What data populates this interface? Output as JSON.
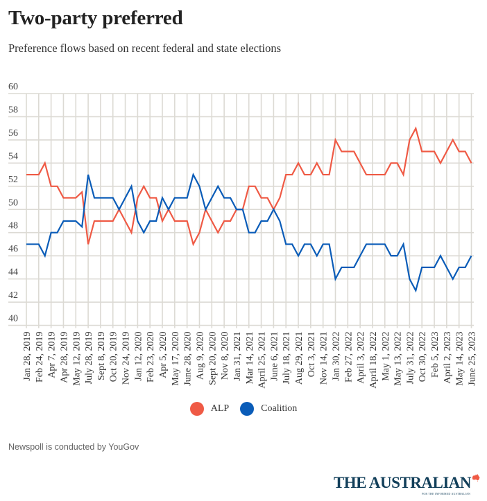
{
  "header": {
    "title": "Two-party preferred",
    "subtitle": "Preference flows based on recent federal and state elections"
  },
  "chart_data": {
    "type": "line",
    "title": "Two-party preferred",
    "subtitle": "Preference flows based on recent federal and state elections",
    "xlabel": "",
    "ylabel": "",
    "ylim": [
      40,
      60
    ],
    "yticks": [
      60,
      58,
      56,
      54,
      52,
      50,
      48,
      46,
      44,
      42,
      40
    ],
    "grid": true,
    "legend_position": "bottom-center",
    "x_tick_labels": [
      "Jan 28, 2019",
      "Feb 24, 2019",
      "Apr 7, 2019",
      "Apr 28, 2019",
      "May 12, 2019",
      "July 28, 2019",
      "Sept 8, 2019",
      "Oct 20, 2019",
      "Nov 24, 2019",
      "Jan 12, 2020",
      "Feb 23, 2020",
      "Apr 5, 2020",
      "May 17, 2020",
      "June 28, 2020",
      "Aug 9, 2020",
      "Sept 20, 2020",
      "Nov 8, 2020",
      "Jan 31, 2021",
      "Mar 14, 2021",
      "April 25, 2021",
      "June 6, 2021",
      "July 18, 2021",
      "Aug 29, 2021",
      "Oct 3, 2021",
      "Nov 14, 2021",
      "Jan 30, 2022",
      "Feb 27, 2022",
      "April 3, 2022",
      "April 18, 2022",
      "May 1, 2022",
      "May 13, 2022",
      "July 31, 2022",
      "Oct 30, 2022",
      "Feb 5, 2023",
      "April 2, 2023",
      "May 14, 2023",
      "June 25, 2023"
    ],
    "points_per_label": 2,
    "series": [
      {
        "name": "ALP",
        "color": "#ef5a45",
        "values": [
          53,
          53,
          53,
          54,
          52,
          52,
          51,
          51,
          51,
          51.5,
          47,
          49,
          49,
          49,
          49,
          50,
          49,
          48,
          51,
          52,
          51,
          51,
          49,
          50,
          49,
          49,
          49,
          47,
          48,
          50,
          49,
          48,
          49,
          49,
          50,
          50,
          52,
          52,
          51,
          51,
          50,
          51,
          53,
          53,
          54,
          53,
          53,
          54,
          53,
          53,
          56,
          55,
          55,
          55,
          54,
          53,
          53,
          53,
          53,
          54,
          54,
          53,
          56,
          57,
          55,
          55,
          55,
          54,
          55,
          56,
          55,
          55,
          54
        ]
      },
      {
        "name": "Coalition",
        "color": "#0a5cb8",
        "values": [
          47,
          47,
          47,
          46,
          48,
          48,
          49,
          49,
          49,
          48.5,
          53,
          51,
          51,
          51,
          51,
          50,
          51,
          52,
          49,
          48,
          49,
          49,
          51,
          50,
          51,
          51,
          51,
          53,
          52,
          50,
          51,
          52,
          51,
          51,
          50,
          50,
          48,
          48,
          49,
          49,
          50,
          49,
          47,
          47,
          46,
          47,
          47,
          46,
          47,
          47,
          44,
          45,
          45,
          45,
          46,
          47,
          47,
          47,
          47,
          46,
          46,
          47,
          44,
          43,
          45,
          45,
          45,
          46,
          45,
          44,
          45,
          45,
          46
        ]
      }
    ]
  },
  "legend": [
    {
      "label": "ALP",
      "color": "#ef5a45"
    },
    {
      "label": "Coalition",
      "color": "#0a5cb8"
    }
  ],
  "footer": {
    "note": "Newspoll is conducted by YouGov",
    "logo_text": "THE AUSTRALIAN",
    "logo_tagline": "FOR THE INFORMED AUSTRALIAN",
    "logo_icon": "australia-map-icon",
    "logo_color": "#123f5a",
    "logo_accent": "#ef5a45"
  }
}
